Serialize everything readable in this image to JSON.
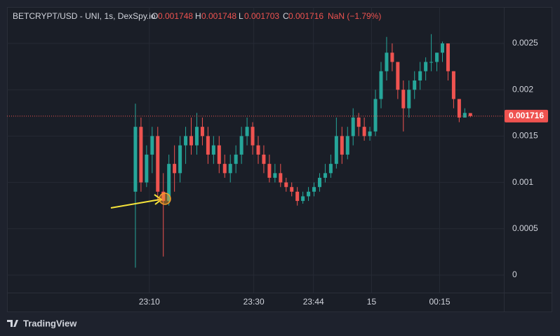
{
  "chart_data": {
    "type": "candlestick",
    "header": {
      "symbol": "BETCRYPT/USD - UNI, 1s, DexSpy.io",
      "o_label": "O",
      "o_value": "0.001748",
      "h_label": "H",
      "h_value": "0.001748",
      "l_label": "L",
      "l_value": "0.001703",
      "c_label": "C",
      "c_value": "0.001716",
      "change": "NaN (−1.79%)"
    },
    "up_color": "#26a69a",
    "down_color": "#ef5350",
    "x": [
      0,
      1,
      2,
      3,
      4,
      5,
      6,
      7,
      8,
      9,
      10,
      11,
      12,
      13,
      14,
      15,
      16,
      17,
      18,
      19,
      20,
      21,
      22,
      23,
      24,
      25,
      26,
      27,
      28,
      29,
      30,
      31,
      32,
      33,
      34,
      35,
      36,
      37,
      38,
      39,
      40,
      41,
      42,
      43,
      44,
      45,
      46,
      47,
      48,
      49,
      50,
      51,
      52,
      53,
      54,
      55,
      56,
      57,
      58,
      59,
      60
    ],
    "open": [
      0.0009,
      0.0016,
      0.001,
      0.0013,
      0.0015,
      0.0009,
      0.0008,
      0.0012,
      0.0011,
      0.0014,
      0.0015,
      0.0014,
      0.0016,
      0.0015,
      0.0013,
      0.0014,
      0.0012,
      0.0011,
      0.0012,
      0.0013,
      0.0015,
      0.0016,
      0.0014,
      0.0013,
      0.0012,
      0.00105,
      0.0011,
      0.001,
      0.00095,
      0.0009,
      0.0008,
      0.00085,
      0.0009,
      0.00095,
      0.00105,
      0.0011,
      0.0012,
      0.0015,
      0.0013,
      0.0015,
      0.0017,
      0.0016,
      0.0015,
      0.00155,
      0.0019,
      0.0022,
      0.0024,
      0.0023,
      0.002,
      0.0018,
      0.002,
      0.0021,
      0.0022,
      0.0023,
      0.0023,
      0.0024,
      0.0025,
      0.0022,
      0.0019,
      0.0017,
      0.001748
    ],
    "high": [
      0.00185,
      0.0017,
      0.0014,
      0.0016,
      0.0016,
      0.0011,
      0.0013,
      0.0014,
      0.0015,
      0.0016,
      0.0017,
      0.00175,
      0.0017,
      0.0016,
      0.0015,
      0.0015,
      0.0013,
      0.0013,
      0.0014,
      0.0016,
      0.0017,
      0.00165,
      0.0015,
      0.0014,
      0.0013,
      0.0012,
      0.0012,
      0.00105,
      0.001,
      0.00095,
      0.0009,
      0.00095,
      0.001,
      0.0011,
      0.0012,
      0.0013,
      0.0017,
      0.0016,
      0.0016,
      0.0018,
      0.00175,
      0.0017,
      0.0016,
      0.002,
      0.0023,
      0.00257,
      0.0025,
      0.0023,
      0.0021,
      0.0021,
      0.0022,
      0.0023,
      0.00235,
      0.0026,
      0.0024,
      0.00252,
      0.0025,
      0.0022,
      0.0019,
      0.0018,
      0.001748
    ],
    "low": [
      8e-05,
      0.0009,
      0.00095,
      0.0011,
      0.0008,
      0.0002,
      0.00075,
      0.0009,
      0.001,
      0.0012,
      0.0013,
      0.0013,
      0.0014,
      0.0012,
      0.0012,
      0.0011,
      0.00105,
      0.001,
      0.0011,
      0.0012,
      0.0014,
      0.0013,
      0.0012,
      0.0011,
      0.001,
      0.001,
      0.00095,
      0.0009,
      0.00085,
      0.00075,
      0.00077,
      0.0008,
      0.00085,
      0.0009,
      0.001,
      0.00105,
      0.00115,
      0.0012,
      0.00125,
      0.0014,
      0.0015,
      0.00145,
      0.00145,
      0.0015,
      0.0018,
      0.0021,
      0.0022,
      0.0019,
      0.00155,
      0.0017,
      0.0019,
      0.002,
      0.0021,
      0.0022,
      0.0022,
      0.0023,
      0.0021,
      0.0018,
      0.00165,
      0.0017,
      0.001703
    ],
    "close": [
      0.0016,
      0.001,
      0.0013,
      0.0015,
      0.0009,
      0.0008,
      0.0012,
      0.0011,
      0.0014,
      0.0015,
      0.0014,
      0.0016,
      0.0015,
      0.0013,
      0.0014,
      0.0012,
      0.0011,
      0.0012,
      0.0013,
      0.0015,
      0.0016,
      0.0014,
      0.0013,
      0.0012,
      0.00105,
      0.0011,
      0.001,
      0.00095,
      0.0009,
      0.0008,
      0.00085,
      0.0009,
      0.00095,
      0.00105,
      0.0011,
      0.0012,
      0.0015,
      0.0013,
      0.0015,
      0.0017,
      0.0016,
      0.0015,
      0.00155,
      0.0019,
      0.0022,
      0.0024,
      0.0023,
      0.002,
      0.0018,
      0.002,
      0.0021,
      0.0022,
      0.0023,
      0.0023,
      0.0024,
      0.0025,
      0.0022,
      0.0019,
      0.0017,
      0.00175,
      0.001716
    ],
    "last_price": 0.001716,
    "xlim": [
      -23,
      66
    ],
    "xticks": [
      {
        "value": 2.5,
        "label": "23:10"
      },
      {
        "value": 21.2,
        "label": "23:30"
      },
      {
        "value": 31.9,
        "label": "23:44"
      },
      {
        "value": 42.3,
        "label": "15"
      },
      {
        "value": 54.5,
        "label": "00:15"
      }
    ],
    "ylim": [
      -0.000189,
      0.002893
    ],
    "yticks": [
      0,
      0.0005,
      0.001,
      0.0015,
      0.002,
      0.0025
    ],
    "grid": true,
    "brand": "TradingView"
  }
}
